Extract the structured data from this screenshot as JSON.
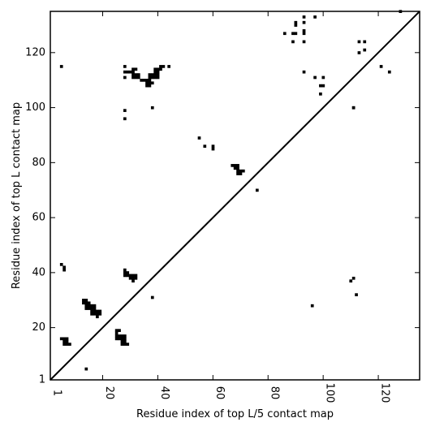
{
  "chart_data": {
    "type": "heatmap",
    "title": "",
    "xlabel": "Residue index of top L/5 contact map",
    "ylabel": "Residue index of top L contact map",
    "xlim": [
      1,
      135
    ],
    "ylim": [
      1,
      135
    ],
    "x_ticks": [
      1,
      20,
      40,
      60,
      80,
      100,
      120
    ],
    "y_ticks": [
      1,
      20,
      40,
      60,
      80,
      100,
      120
    ],
    "x_tick_labels": [
      "1",
      "20",
      "40",
      "60",
      "80",
      "100",
      "120"
    ],
    "y_tick_labels": [
      "1",
      "20",
      "40",
      "60",
      "80",
      "100",
      "120"
    ],
    "diagonal": [
      [
        1,
        1
      ],
      [
        135,
        135
      ]
    ],
    "grid": false,
    "cell_color": "#000000",
    "upper_left_contacts": [
      [
        5,
        115
      ],
      [
        28,
        115
      ],
      [
        28,
        113
      ],
      [
        28,
        111
      ],
      [
        29,
        113
      ],
      [
        30,
        113
      ],
      [
        31,
        113
      ],
      [
        31,
        114
      ],
      [
        32,
        114
      ],
      [
        31,
        112
      ],
      [
        32,
        112
      ],
      [
        33,
        112
      ],
      [
        31,
        111
      ],
      [
        32,
        111
      ],
      [
        33,
        111
      ],
      [
        34,
        110
      ],
      [
        35,
        110
      ],
      [
        36,
        110
      ],
      [
        37,
        110
      ],
      [
        37,
        111
      ],
      [
        37,
        112
      ],
      [
        38,
        112
      ],
      [
        38,
        111
      ],
      [
        36,
        109
      ],
      [
        37,
        109
      ],
      [
        38,
        109
      ],
      [
        36,
        108
      ],
      [
        37,
        108
      ],
      [
        39,
        112
      ],
      [
        40,
        112
      ],
      [
        39,
        113
      ],
      [
        40,
        113
      ],
      [
        39,
        114
      ],
      [
        40,
        114
      ],
      [
        41,
        114
      ],
      [
        41,
        115
      ],
      [
        42,
        115
      ],
      [
        44,
        115
      ],
      [
        39,
        111
      ],
      [
        40,
        111
      ],
      [
        28,
        99
      ],
      [
        28,
        96
      ],
      [
        38,
        100
      ],
      [
        55,
        89
      ],
      [
        57,
        86
      ],
      [
        60,
        86
      ],
      [
        60,
        85
      ],
      [
        67,
        79
      ],
      [
        68,
        79
      ],
      [
        69,
        79
      ],
      [
        68,
        78
      ],
      [
        69,
        78
      ],
      [
        69,
        77
      ],
      [
        70,
        77
      ],
      [
        71,
        77
      ],
      [
        69,
        76
      ],
      [
        70,
        76
      ],
      [
        76,
        70
      ],
      [
        86,
        127
      ],
      [
        89,
        127
      ],
      [
        90,
        127
      ],
      [
        90,
        130
      ],
      [
        90,
        131
      ],
      [
        89,
        124
      ],
      [
        93,
        133
      ],
      [
        93,
        131
      ],
      [
        93,
        128
      ],
      [
        93,
        127
      ],
      [
        93,
        124
      ],
      [
        97,
        133
      ],
      [
        93,
        113
      ],
      [
        97,
        111
      ],
      [
        99,
        108
      ],
      [
        100,
        108
      ],
      [
        99,
        105
      ],
      [
        100,
        111
      ],
      [
        111,
        100
      ],
      [
        111,
        100
      ],
      [
        113,
        124
      ],
      [
        115,
        124
      ],
      [
        113,
        120
      ],
      [
        115,
        121
      ],
      [
        121,
        115
      ],
      [
        124,
        113
      ],
      [
        128,
        135
      ]
    ],
    "lower_right_contacts": [
      [
        5,
        43
      ],
      [
        6,
        42
      ],
      [
        6,
        41
      ],
      [
        28,
        41
      ],
      [
        28,
        40
      ],
      [
        29,
        40
      ],
      [
        28,
        39
      ],
      [
        29,
        39
      ],
      [
        30,
        39
      ],
      [
        30,
        38
      ],
      [
        31,
        38
      ],
      [
        32,
        38
      ],
      [
        31,
        39
      ],
      [
        32,
        39
      ],
      [
        31,
        37
      ],
      [
        38,
        31
      ],
      [
        13,
        30
      ],
      [
        14,
        30
      ],
      [
        13,
        29
      ],
      [
        14,
        29
      ],
      [
        15,
        29
      ],
      [
        14,
        28
      ],
      [
        15,
        28
      ],
      [
        16,
        28
      ],
      [
        17,
        28
      ],
      [
        14,
        27
      ],
      [
        15,
        27
      ],
      [
        16,
        27
      ],
      [
        17,
        27
      ],
      [
        16,
        26
      ],
      [
        17,
        26
      ],
      [
        18,
        26
      ],
      [
        19,
        26
      ],
      [
        16,
        25
      ],
      [
        17,
        25
      ],
      [
        18,
        25
      ],
      [
        19,
        25
      ],
      [
        18,
        24
      ],
      [
        25,
        19
      ],
      [
        26,
        19
      ],
      [
        25,
        18
      ],
      [
        25,
        17
      ],
      [
        26,
        17
      ],
      [
        27,
        17
      ],
      [
        28,
        17
      ],
      [
        25,
        16
      ],
      [
        26,
        16
      ],
      [
        27,
        16
      ],
      [
        28,
        16
      ],
      [
        27,
        15
      ],
      [
        28,
        15
      ],
      [
        27,
        14
      ],
      [
        28,
        14
      ],
      [
        29,
        14
      ],
      [
        5,
        16
      ],
      [
        6,
        16
      ],
      [
        7,
        16
      ],
      [
        6,
        15
      ],
      [
        7,
        15
      ],
      [
        6,
        14
      ],
      [
        7,
        14
      ],
      [
        8,
        14
      ],
      [
        14,
        5
      ],
      [
        96,
        28
      ],
      [
        110,
        37
      ],
      [
        111,
        38
      ],
      [
        112,
        32
      ]
    ]
  }
}
